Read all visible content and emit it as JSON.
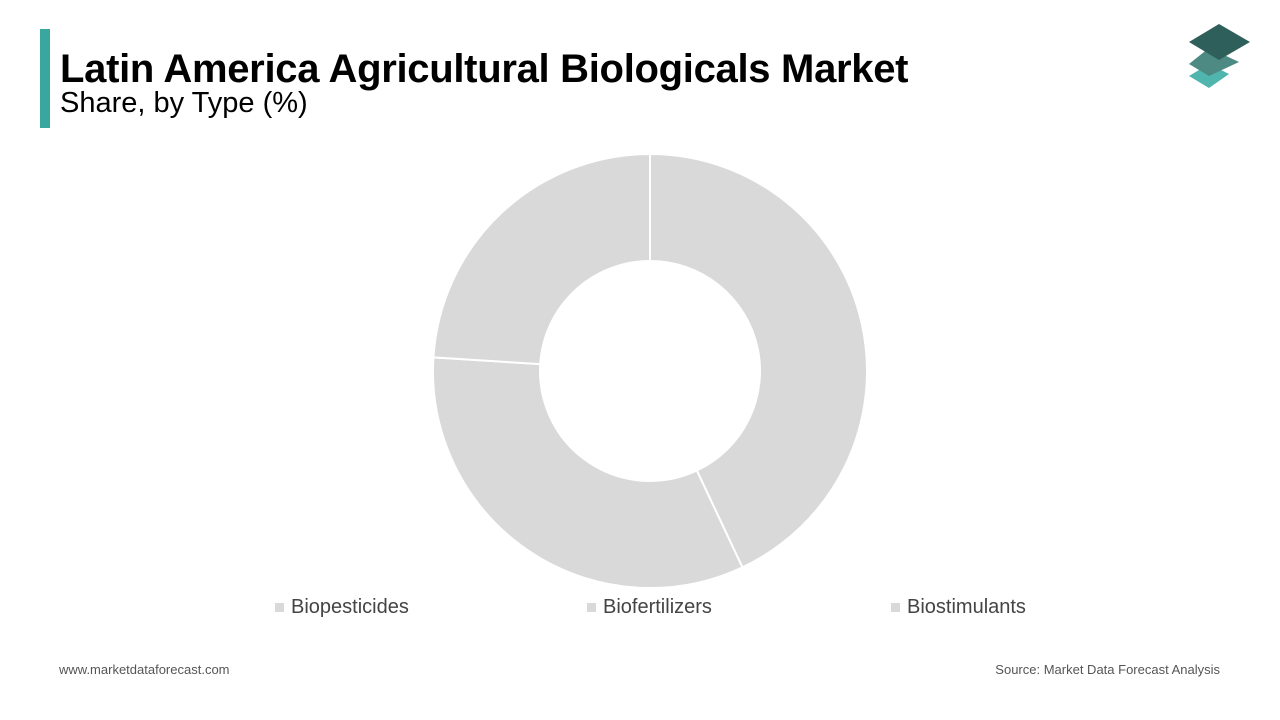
{
  "header": {
    "title": "Latin America Agricultural Biologicals Market",
    "subtitle": "Share, by Type (%)"
  },
  "colors": {
    "accent": "#3aa6a0",
    "slice_fill": "#d9d9d9",
    "slice_border": "#ffffff",
    "legend_swatch": "#d9d9d9",
    "logo_dark": "#2f5f5a",
    "logo_mid": "#4d8a83",
    "logo_light": "#4fb5ad"
  },
  "logo": {
    "icon": "stacked-layers-icon"
  },
  "chart_data": {
    "type": "pie",
    "donut": true,
    "title": "Latin America Agricultural Biologicals Market",
    "subtitle": "Share, by Type (%)",
    "categories": [
      "Biopesticides",
      "Biofertilizers",
      "Biostimulants"
    ],
    "values": [
      43,
      33,
      24
    ],
    "legend": "bottom",
    "start_angle_deg": 0
  },
  "footer": {
    "website": "www.marketdataforecast.com",
    "source": "Source: Market Data Forecast Analysis"
  }
}
